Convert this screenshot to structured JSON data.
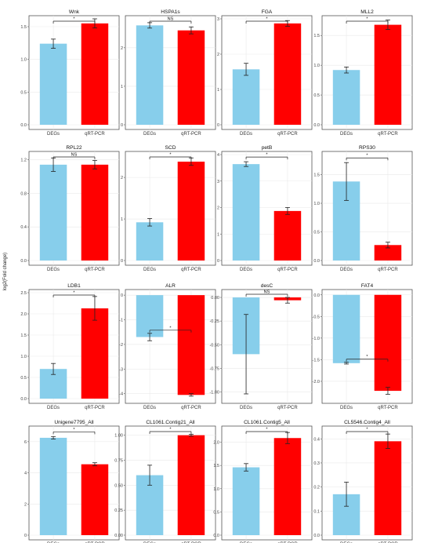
{
  "ylabel": "log2(Fold change)",
  "colors": {
    "degs": "#87CEEB",
    "qrt": "#FF0000",
    "grid": "#e9e9e9",
    "border": "#555555"
  },
  "chart_data": [
    {
      "type": "bar",
      "title": "Wnk",
      "categories": [
        "DEGs",
        "qRT-PCR"
      ],
      "values": [
        1.24,
        1.55
      ],
      "errors": [
        0.07,
        0.07
      ],
      "ylim": [
        0,
        1.62
      ],
      "yticks": [
        0,
        0.5,
        1.0,
        1.5
      ],
      "ytick_labels": [
        "0.0",
        "0.5",
        "1.0",
        "1.5"
      ],
      "sig": "*"
    },
    {
      "type": "bar",
      "title": "HSPA1s",
      "categories": [
        "DEGs",
        "qRT-PCR"
      ],
      "values": [
        2.58,
        2.45
      ],
      "errors": [
        0.07,
        0.09
      ],
      "ylim": [
        0,
        2.75
      ],
      "yticks": [
        0,
        1,
        2
      ],
      "ytick_labels": [
        "0",
        "1",
        "2"
      ],
      "sig": "NS"
    },
    {
      "type": "bar",
      "title": "FGA",
      "categories": [
        "DEGs",
        "qRT-PCR"
      ],
      "values": [
        1.57,
        2.87
      ],
      "errors": [
        0.17,
        0.08
      ],
      "ylim": [
        0,
        3.0
      ],
      "yticks": [
        0,
        1,
        2,
        3
      ],
      "ytick_labels": [
        "0",
        "1",
        "2",
        "3"
      ],
      "sig": "*"
    },
    {
      "type": "bar",
      "title": "MLL2",
      "categories": [
        "DEGs",
        "qRT-PCR"
      ],
      "values": [
        0.92,
        1.68
      ],
      "errors": [
        0.05,
        0.08
      ],
      "ylim": [
        0,
        1.78
      ],
      "yticks": [
        0,
        0.5,
        1.0,
        1.5
      ],
      "ytick_labels": [
        "0.0",
        "0.5",
        "1.0",
        "1.5"
      ],
      "sig": "*"
    },
    {
      "type": "bar",
      "title": "RPL22",
      "categories": [
        "DEGs",
        "qRT-PCR"
      ],
      "values": [
        1.14,
        1.14
      ],
      "errors": [
        0.08,
        0.05
      ],
      "ylim": [
        0,
        1.26
      ],
      "yticks": [
        0,
        0.4,
        0.8,
        1.2
      ],
      "ytick_labels": [
        "0.0",
        "0.4",
        "0.8",
        "1.2"
      ],
      "sig": "NS"
    },
    {
      "type": "bar",
      "title": "SCD",
      "categories": [
        "DEGs",
        "qRT-PCR"
      ],
      "values": [
        0.92,
        2.38
      ],
      "errors": [
        0.09,
        0.09
      ],
      "ylim": [
        0,
        2.55
      ],
      "yticks": [
        0,
        1,
        2
      ],
      "ytick_labels": [
        "0",
        "1",
        "2"
      ],
      "sig": "*"
    },
    {
      "type": "bar",
      "title": "petB",
      "categories": [
        "DEGs",
        "qRT-PCR"
      ],
      "values": [
        3.64,
        1.87
      ],
      "errors": [
        0.09,
        0.13
      ],
      "ylim": [
        0,
        4.0
      ],
      "yticks": [
        0,
        1,
        2,
        3,
        4
      ],
      "ytick_labels": [
        "0",
        "1",
        "2",
        "3",
        "4"
      ],
      "sig": "*"
    },
    {
      "type": "bar",
      "title": "RPS30",
      "categories": [
        "DEGs",
        "qRT-PCR"
      ],
      "values": [
        1.38,
        0.27
      ],
      "errors": [
        0.33,
        0.05
      ],
      "ylim": [
        0,
        1.85
      ],
      "yticks": [
        0,
        0.5,
        1.0,
        1.5
      ],
      "ytick_labels": [
        "0.0",
        "0.5",
        "1.0",
        "1.5"
      ],
      "sig": "*"
    },
    {
      "type": "bar",
      "title": "LDB1",
      "categories": [
        "DEGs",
        "qRT-PCR"
      ],
      "values": [
        0.7,
        2.13
      ],
      "errors": [
        0.13,
        0.28
      ],
      "ylim": [
        0,
        2.5
      ],
      "yticks": [
        0,
        0.5,
        1.0,
        1.5,
        2.0,
        2.5
      ],
      "ytick_labels": [
        "0.0",
        "0.5",
        "1.0",
        "1.5",
        "2.0",
        "2.5"
      ],
      "sig": "*"
    },
    {
      "type": "bar",
      "title": "ALR",
      "categories": [
        "DEGs",
        "qRT-PCR"
      ],
      "values": [
        -1.7,
        -4.05
      ],
      "errors": [
        0.15,
        0.05
      ],
      "ylim": [
        -4.2,
        0.1
      ],
      "yticks": [
        0,
        -1,
        -2,
        -3,
        -4
      ],
      "ytick_labels": [
        "0",
        "-1",
        "-2",
        "-3",
        "-4"
      ],
      "sig": "*"
    },
    {
      "type": "bar",
      "title": "desC",
      "categories": [
        "DEGs",
        "qRT-PCR"
      ],
      "values": [
        -0.6,
        -0.03
      ],
      "errors": [
        0.42,
        0.03
      ],
      "ylim": [
        -1.07,
        0.05
      ],
      "yticks": [
        0,
        -0.25,
        -0.5,
        -0.75,
        -1.0
      ],
      "ytick_labels": [
        "0.00",
        "-0.25",
        "-0.50",
        "-0.75",
        "-1.00"
      ],
      "sig": "NS"
    },
    {
      "type": "bar",
      "title": "FAT4",
      "categories": [
        "DEGs",
        "qRT-PCR"
      ],
      "values": [
        -1.58,
        -2.22
      ],
      "errors": [
        0.02,
        0.08
      ],
      "ylim": [
        -2.4,
        0.05
      ],
      "yticks": [
        0,
        -0.5,
        -1.0,
        -1.5,
        -2.0
      ],
      "ytick_labels": [
        "0.0",
        "-0.5",
        "-1.0",
        "-1.5",
        "-2.0"
      ],
      "sig": "*"
    },
    {
      "type": "bar",
      "title": "Unigene7795_All",
      "categories": [
        "DEGs",
        "qRT-PCR"
      ],
      "values": [
        6.25,
        4.55
      ],
      "errors": [
        0.08,
        0.1
      ],
      "ylim": [
        0,
        6.8
      ],
      "yticks": [
        0,
        2,
        4,
        6
      ],
      "ytick_labels": [
        "0",
        "2",
        "4",
        "6"
      ],
      "sig": "*"
    },
    {
      "type": "bar",
      "title": "CL1061.Contig21_All",
      "categories": [
        "DEGs",
        "qRT-PCR"
      ],
      "values": [
        0.6,
        1.0
      ],
      "errors": [
        0.1,
        0.01
      ],
      "ylim": [
        0,
        1.06
      ],
      "yticks": [
        0,
        0.25,
        0.5,
        0.75,
        1.0
      ],
      "ytick_labels": [
        "0.00",
        "0.25",
        "0.50",
        "0.75",
        "1.00"
      ],
      "sig": "*"
    },
    {
      "type": "bar",
      "title": "CL1061.Contig5_All",
      "categories": [
        "DEGs",
        "qRT-PCR"
      ],
      "values": [
        1.46,
        2.09
      ],
      "errors": [
        0.08,
        0.12
      ],
      "ylim": [
        0,
        2.28
      ],
      "yticks": [
        0,
        0.5,
        1.0,
        1.5,
        2.0
      ],
      "ytick_labels": [
        "0.0",
        "0.5",
        "1.0",
        "1.5",
        "2.0"
      ],
      "sig": "*"
    },
    {
      "type": "bar",
      "title": "CL5546.Contig4_All",
      "categories": [
        "DEGs",
        "qRT-PCR"
      ],
      "values": [
        0.17,
        0.39
      ],
      "errors": [
        0.05,
        0.03
      ],
      "ylim": [
        0,
        0.44
      ],
      "yticks": [
        0,
        0.1,
        0.2,
        0.3,
        0.4
      ],
      "ytick_labels": [
        "0.0",
        "0.1",
        "0.2",
        "0.3",
        "0.4"
      ],
      "sig": "*"
    }
  ]
}
